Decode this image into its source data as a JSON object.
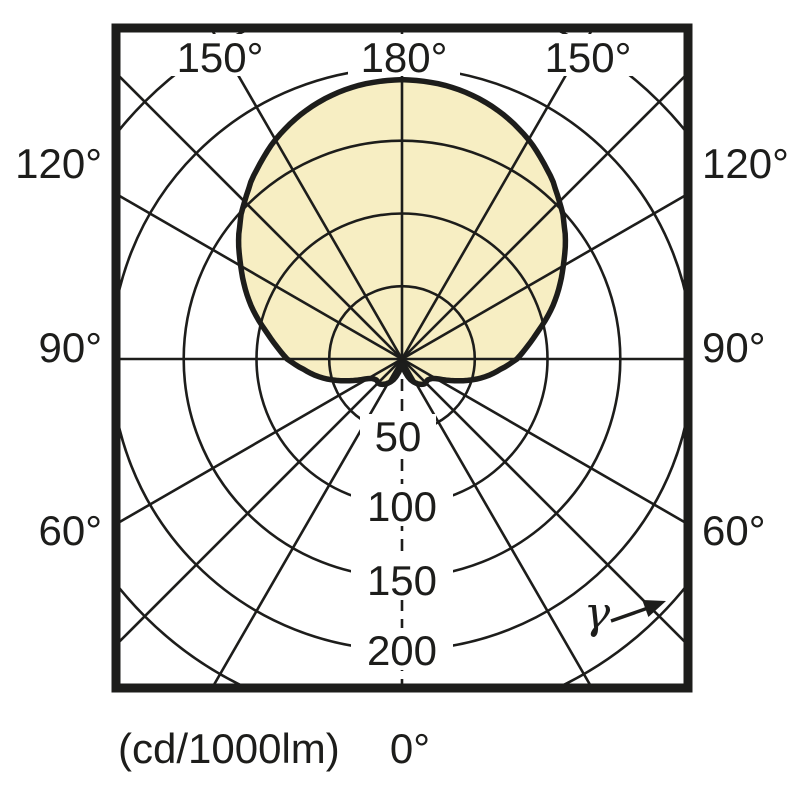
{
  "figure": {
    "description": "Polar luminous intensity distribution diagram of a luminaire",
    "labels": {
      "top_left": "150°",
      "top_center": "180°",
      "top_right": "150°",
      "left": [
        "120°",
        "90°",
        "60°"
      ],
      "right": [
        "120°",
        "90°",
        "60°"
      ],
      "ticks": [
        "50",
        "100",
        "150",
        "200"
      ],
      "unit": "(cd/1000lm)",
      "nadir": "0°",
      "gamma": "γ"
    }
  },
  "colors": {
    "stroke": "#1d1d1b",
    "beam_fill": "#f7eec3",
    "background": "#ffffff"
  },
  "chart_data": {
    "type": "polar",
    "title": "Luminous intensity distribution",
    "radial_unit": "cd/1000lm",
    "radial_tick_values": [
      50,
      100,
      150,
      200
    ],
    "radial_rings": [
      50,
      100,
      150,
      200,
      250
    ],
    "grid_angles_deg": [
      0,
      30,
      45,
      60,
      90,
      120,
      135,
      150,
      180
    ],
    "labeled_angles_deg": [
      0,
      60,
      90,
      120,
      150,
      180
    ],
    "gamma_axis_symbol": "γ",
    "symmetric_about_vertical": true,
    "curve": {
      "gamma_deg": [
        0,
        12,
        22,
        32,
        42,
        52,
        60,
        68,
        76,
        84,
        90,
        100,
        110,
        120,
        130,
        135,
        140,
        150,
        160,
        170,
        180
      ],
      "cd_per_1000lm": [
        3,
        8,
        15,
        20,
        23,
        23,
        27,
        40,
        55,
        68,
        79,
        93,
        111,
        128,
        145,
        153,
        161,
        174,
        184,
        190,
        192
      ]
    }
  }
}
